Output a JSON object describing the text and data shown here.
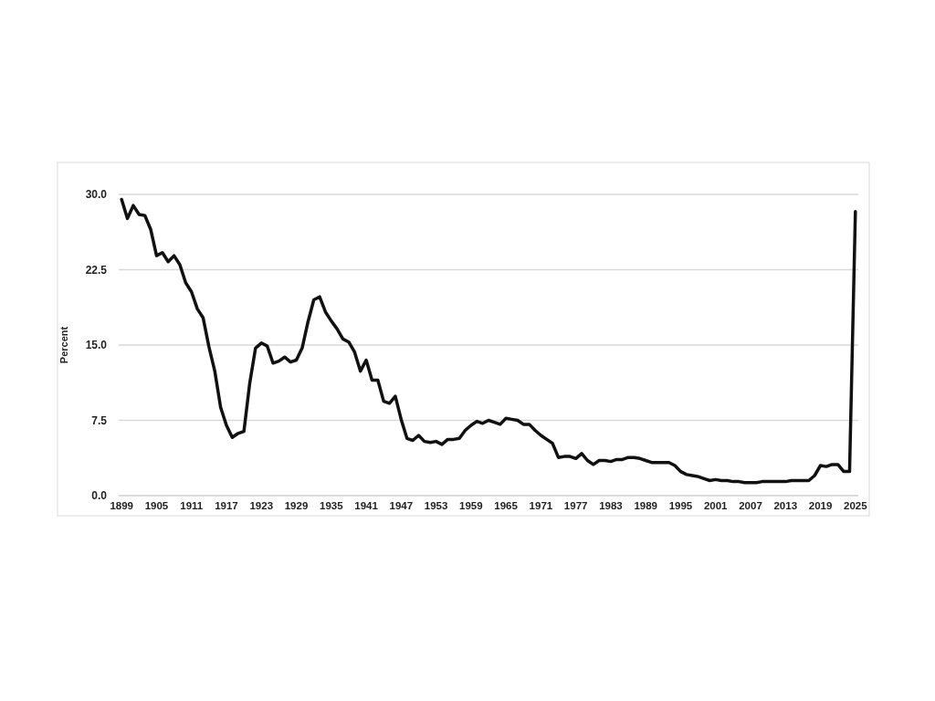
{
  "chart_data": {
    "type": "line",
    "ylabel": "Percent",
    "grid": "y",
    "marker": "none",
    "line_style": "solid",
    "xlim": [
      1898.5,
      2025.5
    ],
    "xticks": [
      1899,
      1905,
      1911,
      1917,
      1923,
      1929,
      1935,
      1941,
      1947,
      1953,
      1959,
      1965,
      1971,
      1977,
      1983,
      1989,
      1995,
      2001,
      2007,
      2013,
      2019,
      2025
    ],
    "ylim": [
      0,
      30
    ],
    "yticks": [
      {
        "value": 0,
        "label": "0.0"
      },
      {
        "value": 7.5,
        "label": "7.5"
      },
      {
        "value": 15,
        "label": "15.0"
      },
      {
        "value": 22.5,
        "label": "22.5"
      },
      {
        "value": 30,
        "label": "30.0"
      }
    ],
    "x": [
      1899,
      1900,
      1901,
      1902,
      1903,
      1904,
      1905,
      1906,
      1907,
      1908,
      1909,
      1910,
      1911,
      1912,
      1913,
      1914,
      1915,
      1916,
      1917,
      1918,
      1919,
      1920,
      1921,
      1922,
      1923,
      1924,
      1925,
      1926,
      1927,
      1928,
      1929,
      1930,
      1931,
      1932,
      1933,
      1934,
      1935,
      1936,
      1937,
      1938,
      1939,
      1940,
      1941,
      1942,
      1943,
      1944,
      1945,
      1946,
      1947,
      1948,
      1949,
      1950,
      1951,
      1952,
      1953,
      1954,
      1955,
      1956,
      1957,
      1958,
      1959,
      1960,
      1961,
      1962,
      1963,
      1964,
      1965,
      1966,
      1967,
      1968,
      1969,
      1970,
      1971,
      1972,
      1973,
      1974,
      1975,
      1976,
      1977,
      1978,
      1979,
      1980,
      1981,
      1982,
      1983,
      1984,
      1985,
      1986,
      1987,
      1988,
      1989,
      1990,
      1991,
      1992,
      1993,
      1994,
      1995,
      1996,
      1997,
      1998,
      1999,
      2000,
      2001,
      2002,
      2003,
      2004,
      2005,
      2006,
      2007,
      2008,
      2009,
      2010,
      2011,
      2012,
      2013,
      2014,
      2015,
      2016,
      2017,
      2018,
      2019,
      2020,
      2021,
      2022,
      2023,
      2024,
      2025
    ],
    "series": [
      {
        "color": "#111111",
        "values": [
          29.5,
          27.6,
          28.9,
          28.0,
          27.9,
          26.5,
          23.9,
          24.2,
          23.3,
          23.9,
          23.0,
          21.2,
          20.3,
          18.6,
          17.7,
          14.8,
          12.4,
          8.8,
          7.0,
          5.8,
          6.2,
          6.4,
          11.2,
          14.7,
          15.2,
          14.9,
          13.2,
          13.4,
          13.8,
          13.3,
          13.5,
          14.7,
          17.3,
          19.5,
          19.8,
          18.3,
          17.4,
          16.6,
          15.6,
          15.3,
          14.3,
          12.4,
          13.5,
          11.5,
          11.5,
          9.4,
          9.2,
          9.9,
          7.6,
          5.7,
          5.5,
          6.0,
          5.4,
          5.3,
          5.4,
          5.1,
          5.6,
          5.6,
          5.7,
          6.5,
          7.0,
          7.4,
          7.2,
          7.5,
          7.3,
          7.1,
          7.7,
          7.6,
          7.5,
          7.1,
          7.1,
          6.5,
          6.0,
          5.6,
          5.2,
          3.8,
          3.9,
          3.9,
          3.7,
          4.2,
          3.5,
          3.1,
          3.5,
          3.5,
          3.4,
          3.6,
          3.6,
          3.8,
          3.8,
          3.7,
          3.5,
          3.3,
          3.3,
          3.3,
          3.3,
          3.0,
          2.4,
          2.1,
          2.0,
          1.9,
          1.7,
          1.5,
          1.6,
          1.5,
          1.5,
          1.4,
          1.4,
          1.3,
          1.3,
          1.3,
          1.4,
          1.4,
          1.4,
          1.4,
          1.4,
          1.5,
          1.5,
          1.5,
          1.5,
          2.0,
          3.0,
          2.9,
          3.1,
          3.1,
          2.4,
          2.4,
          28.3
        ]
      }
    ]
  }
}
